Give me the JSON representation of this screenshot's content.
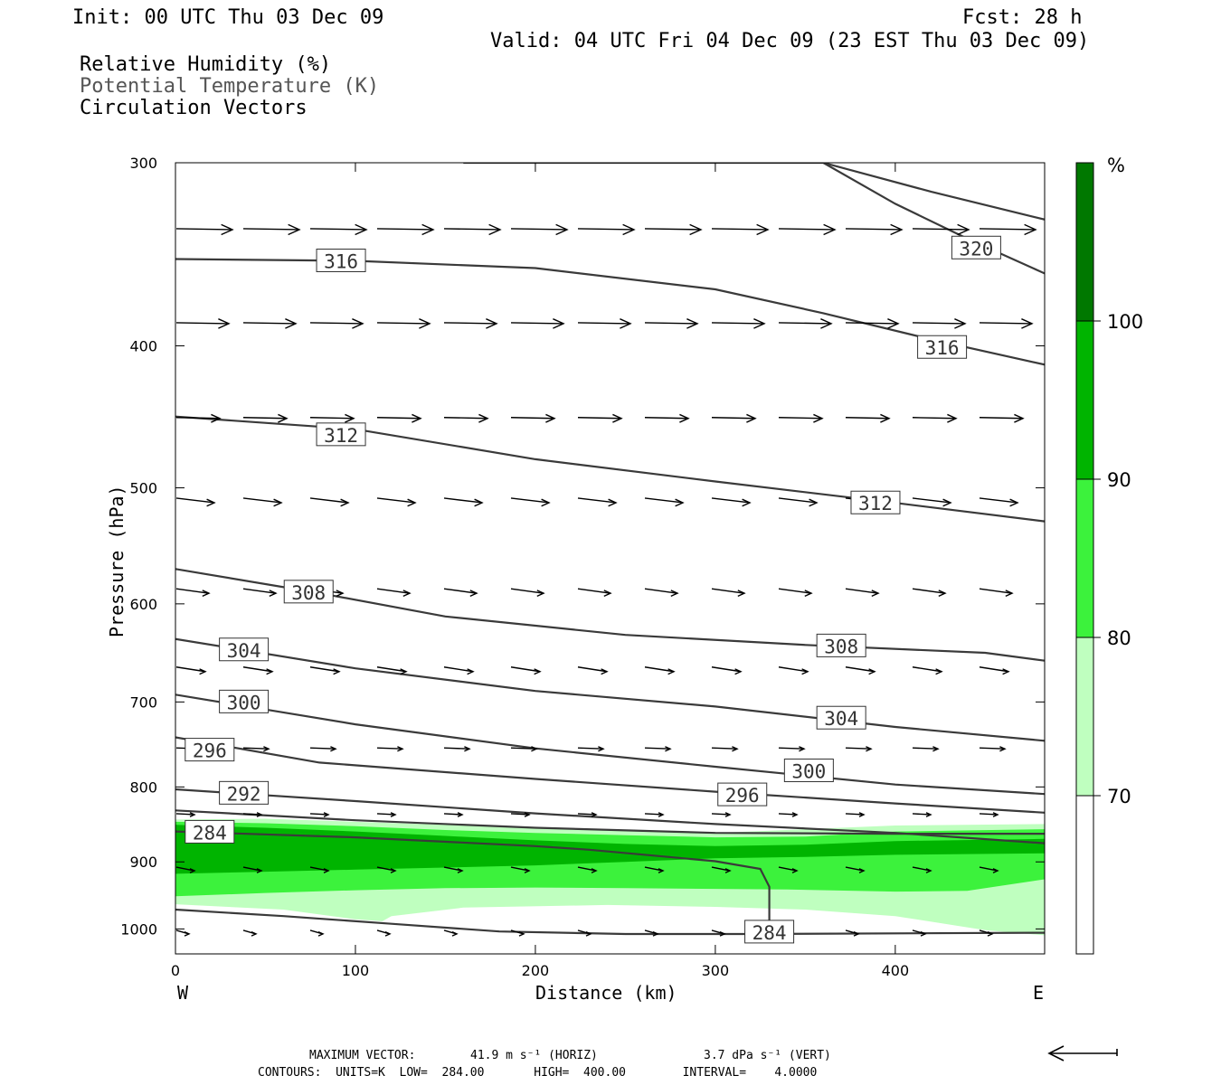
{
  "header": {
    "init": "Init: 00 UTC Thu 03 Dec 09",
    "fcst": "Fcst:   28 h",
    "valid": "Valid: 04 UTC Fri 04 Dec 09 (23 EST Thu 03 Dec 09)",
    "fields": [
      "Relative Humidity (%)",
      "Potential Temperature (K)",
      "Circulation Vectors"
    ]
  },
  "footer": {
    "max_vector_label": "MAXIMUM VECTOR:",
    "horiz": "41.9 m s⁻¹ (HORIZ)",
    "vert": "3.7 dPa s⁻¹ (VERT)",
    "contours": "CONTOURS:  UNITS=K  LOW=  284.00       HIGH=  400.00        INTERVAL=    4.0000"
  },
  "colors": {
    "rh_70_80": "#bfffbf",
    "rh_80_90": "#3cf23c",
    "rh_90_100": "#00b400",
    "rh_100": "#007800",
    "contour": "#3a3a3a"
  },
  "chart_data": {
    "type": "cross-section",
    "title": "",
    "xlabel": "Distance (km)",
    "ylabel": "Pressure (hPa)",
    "xlim": [
      0,
      483
    ],
    "ylim": [
      300,
      1040
    ],
    "y_log": true,
    "x_ticks": [
      "0",
      "100",
      "200",
      "300",
      "400"
    ],
    "x_tick_values": [
      0,
      100,
      200,
      300,
      400
    ],
    "y_ticks": [
      "300",
      "400",
      "500",
      "600",
      "700",
      "800",
      "900",
      "1000"
    ],
    "y_tick_values": [
      300,
      400,
      500,
      600,
      700,
      800,
      900,
      1000
    ],
    "west_label": "W",
    "east_label": "E",
    "colorbar": {
      "unit": "%",
      "levels": [
        70,
        80,
        90,
        100
      ],
      "labels": [
        "70",
        "80",
        "90",
        "100"
      ]
    },
    "rh_layers": [
      {
        "level": 70,
        "top": [
          [
            0,
            842
          ],
          [
            50,
            841
          ],
          [
            100,
            845
          ],
          [
            150,
            849
          ],
          [
            200,
            853
          ],
          [
            250,
            857
          ],
          [
            300,
            860
          ],
          [
            350,
            855
          ],
          [
            400,
            850
          ],
          [
            483,
            848
          ]
        ],
        "bottom": [
          [
            0,
            962
          ],
          [
            60,
            970
          ],
          [
            100,
            985
          ],
          [
            115,
            988
          ],
          [
            120,
            980
          ],
          [
            160,
            967
          ],
          [
            240,
            963
          ],
          [
            300,
            966
          ],
          [
            350,
            970
          ],
          [
            400,
            980
          ],
          [
            430,
            993
          ],
          [
            450,
            1002
          ],
          [
            483,
            1010
          ]
        ]
      },
      {
        "level": 80,
        "top": [
          [
            0,
            845
          ],
          [
            50,
            847
          ],
          [
            100,
            851
          ],
          [
            150,
            856
          ],
          [
            200,
            860
          ],
          [
            250,
            863
          ],
          [
            300,
            866
          ],
          [
            350,
            865
          ],
          [
            400,
            858
          ],
          [
            483,
            855
          ]
        ],
        "bottom": [
          [
            0,
            950
          ],
          [
            50,
            945
          ],
          [
            100,
            941
          ],
          [
            150,
            938
          ],
          [
            200,
            937
          ],
          [
            250,
            938
          ],
          [
            300,
            939
          ],
          [
            340,
            940
          ],
          [
            400,
            943
          ],
          [
            440,
            942
          ],
          [
            483,
            925
          ]
        ]
      },
      {
        "level": 90,
        "top": [
          [
            0,
            849
          ],
          [
            50,
            853
          ],
          [
            100,
            858
          ],
          [
            150,
            864
          ],
          [
            200,
            870
          ],
          [
            250,
            875
          ],
          [
            300,
            878
          ],
          [
            350,
            876
          ],
          [
            400,
            871
          ],
          [
            483,
            868
          ]
        ],
        "bottom": [
          [
            0,
            917
          ],
          [
            50,
            914
          ],
          [
            100,
            911
          ],
          [
            150,
            908
          ],
          [
            200,
            905
          ],
          [
            250,
            900
          ],
          [
            300,
            895
          ],
          [
            350,
            893
          ],
          [
            400,
            890
          ],
          [
            483,
            888
          ]
        ]
      }
    ],
    "theta_contours": [
      {
        "value": 320,
        "label": "320",
        "label_at": [
          445,
          343
        ],
        "points": [
          [
            160,
            300
          ],
          [
            360,
            300
          ],
          [
            420,
            314
          ],
          [
            483,
            328
          ]
        ]
      },
      {
        "value": 320,
        "label": "",
        "points": [
          [
            360,
            300
          ],
          [
            400,
            320
          ],
          [
            440,
            338
          ],
          [
            483,
            357
          ]
        ]
      },
      {
        "value": 316,
        "label": "316",
        "label_at": [
          92,
          350
        ],
        "points": [
          [
            0,
            349
          ],
          [
            100,
            350
          ],
          [
            200,
            354
          ],
          [
            300,
            366
          ],
          [
            360,
            380
          ],
          [
            420,
            396
          ],
          [
            483,
            412
          ]
        ]
      },
      {
        "value": 316,
        "label": "316",
        "label_at": [
          426,
          401
        ],
        "points": []
      },
      {
        "value": 312,
        "label": "312",
        "label_at": [
          92,
          460
        ],
        "points": [
          [
            0,
            447
          ],
          [
            100,
            456
          ],
          [
            200,
            478
          ],
          [
            300,
            495
          ],
          [
            400,
            512
          ],
          [
            483,
            527
          ]
        ]
      },
      {
        "value": 312,
        "label": "312",
        "label_at": [
          389,
          512
        ],
        "points": []
      },
      {
        "value": 308,
        "label": "308",
        "label_at": [
          74,
          589
        ],
        "points": [
          [
            0,
            568
          ],
          [
            80,
            590
          ],
          [
            150,
            612
          ],
          [
            250,
            630
          ],
          [
            350,
            640
          ],
          [
            450,
            648
          ],
          [
            483,
            656
          ]
        ]
      },
      {
        "value": 308,
        "label": "308",
        "label_at": [
          370,
          641
        ],
        "points": []
      },
      {
        "value": 304,
        "label": "304",
        "label_at": [
          38,
          645
        ],
        "points": [
          [
            0,
            634
          ],
          [
            100,
            664
          ],
          [
            200,
            688
          ],
          [
            300,
            705
          ],
          [
            400,
            728
          ],
          [
            483,
            744
          ]
        ]
      },
      {
        "value": 304,
        "label": "304",
        "label_at": [
          370,
          718
        ],
        "points": []
      },
      {
        "value": 300,
        "label": "300",
        "label_at": [
          38,
          700
        ],
        "points": [
          [
            0,
            692
          ],
          [
            100,
            725
          ],
          [
            200,
            753
          ],
          [
            300,
            775
          ],
          [
            400,
            797
          ],
          [
            483,
            809
          ]
        ]
      },
      {
        "value": 300,
        "label": "300",
        "label_at": [
          352,
          780
        ],
        "points": []
      },
      {
        "value": 296,
        "label": "296",
        "label_at": [
          19,
          755
        ],
        "points": [
          [
            0,
            740
          ],
          [
            80,
            770
          ],
          [
            200,
            790
          ],
          [
            300,
            806
          ],
          [
            400,
            821
          ],
          [
            483,
            833
          ]
        ]
      },
      {
        "value": 296,
        "label": "296",
        "label_at": [
          315,
          810
        ],
        "points": []
      },
      {
        "value": 292,
        "label": "292",
        "label_at": [
          38,
          808
        ],
        "points": [
          [
            0,
            803
          ],
          [
            100,
            818
          ],
          [
            200,
            834
          ],
          [
            300,
            848
          ],
          [
            400,
            860
          ],
          [
            483,
            874
          ]
        ]
      },
      {
        "value": 288,
        "label": "",
        "points": [
          [
            0,
            830
          ],
          [
            100,
            843
          ],
          [
            200,
            853
          ],
          [
            300,
            860
          ],
          [
            400,
            861
          ],
          [
            483,
            861
          ]
        ]
      },
      {
        "value": 284,
        "label": "284",
        "label_at": [
          19,
          859
        ],
        "points": [
          [
            0,
            858
          ],
          [
            100,
            866
          ],
          [
            200,
            878
          ],
          [
            230,
            883
          ],
          [
            300,
            899
          ],
          [
            325,
            910
          ],
          [
            330,
            936
          ],
          [
            330,
            990
          ]
        ]
      },
      {
        "value": 284,
        "label": "284",
        "label_at": [
          330,
          1005
        ],
        "points": [
          [
            0,
            970
          ],
          [
            60,
            980
          ],
          [
            120,
            992
          ],
          [
            180,
            1004
          ],
          [
            250,
            1008
          ],
          [
            320,
            1008
          ],
          [
            483,
            1006
          ]
        ]
      }
    ],
    "vector_rows": [
      {
        "p": 333,
        "len": 62
      },
      {
        "p": 386,
        "len": 58
      },
      {
        "p": 448,
        "len": 48
      },
      {
        "p": 510,
        "len": 42
      },
      {
        "p": 588,
        "len": 36
      },
      {
        "p": 665,
        "len": 32
      },
      {
        "p": 753,
        "len": 28
      },
      {
        "p": 835,
        "len": 20
      },
      {
        "p": 910,
        "len": 20
      },
      {
        "p": 1005,
        "len": 14
      }
    ]
  }
}
